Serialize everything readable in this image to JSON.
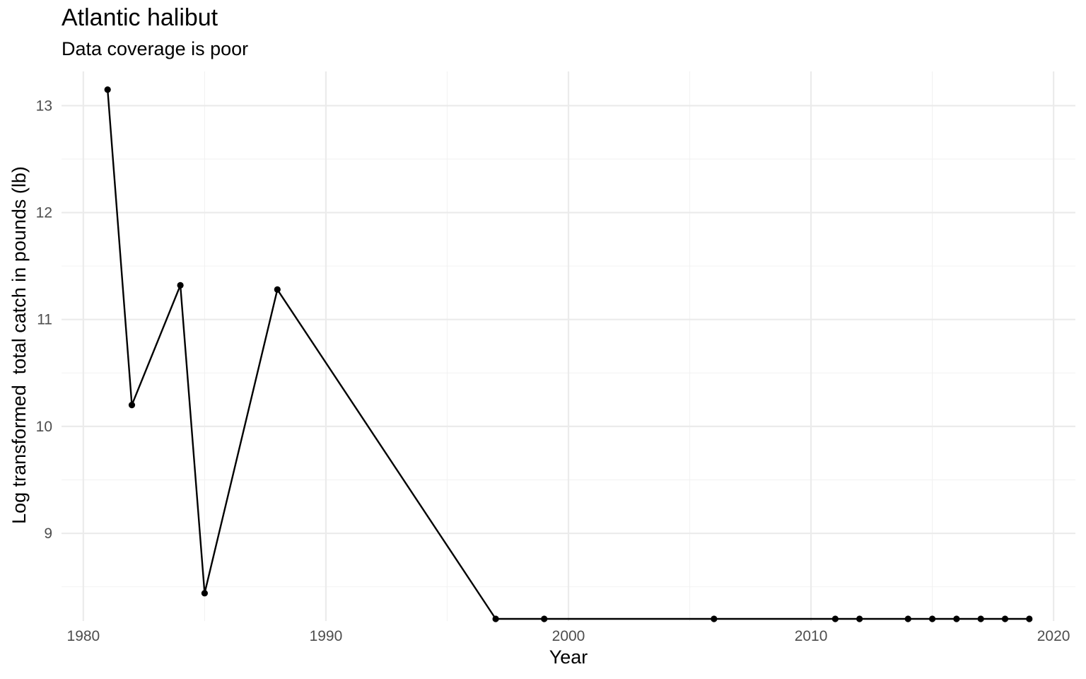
{
  "chart_data": {
    "type": "line",
    "title": "Atlantic halibut",
    "subtitle": "Data coverage is poor",
    "xlabel": "Year",
    "ylabel": "Log transformed  total catch in pounds (lb)",
    "xlim": [
      1979.1,
      2020.9
    ],
    "ylim": [
      8.18,
      13.32
    ],
    "x_ticks": [
      1980,
      1990,
      2000,
      2010,
      2020
    ],
    "y_ticks": [
      9,
      10,
      11,
      12,
      13
    ],
    "grid": true,
    "legend": "none",
    "line_color": "#000000",
    "series": [
      {
        "x": [
          1981,
          1982,
          1984,
          1985,
          1988,
          1997,
          1999,
          2006,
          2011,
          2012,
          2014,
          2015,
          2016,
          2017,
          2018,
          2019
        ],
        "y": [
          13.15,
          10.2,
          11.32,
          8.44,
          11.28,
          8.2,
          8.2,
          8.2,
          8.2,
          8.2,
          8.2,
          8.2,
          8.2,
          8.2,
          8.2,
          8.2
        ]
      }
    ]
  }
}
